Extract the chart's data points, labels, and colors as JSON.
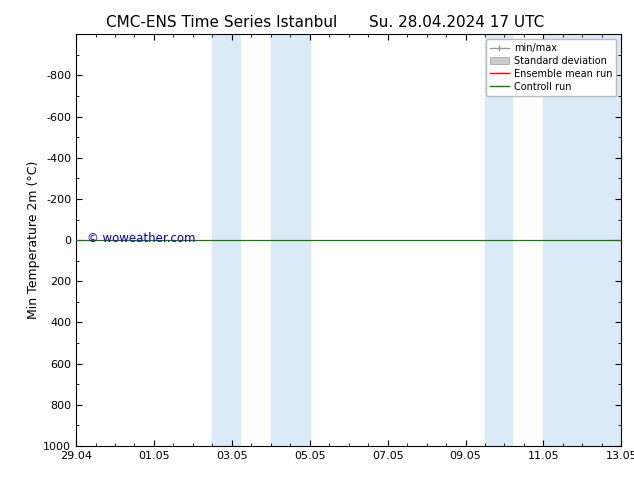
{
  "title_left": "CMC-ENS Time Series Istanbul",
  "title_right": "Su. 28.04.2024 17 UTC",
  "ylabel": "Min Temperature 2m (°C)",
  "ylim": [
    -1000,
    1000
  ],
  "yticks": [
    -800,
    -600,
    -400,
    -200,
    0,
    200,
    400,
    600,
    800,
    1000
  ],
  "xtick_labels": [
    "29.04",
    "01.05",
    "03.05",
    "05.05",
    "07.05",
    "09.05",
    "11.05",
    "13.05"
  ],
  "xtick_positions": [
    0,
    2,
    4,
    6,
    8,
    10,
    12,
    14
  ],
  "shaded_regions": [
    [
      3.5,
      4.2
    ],
    [
      5.0,
      6.0
    ],
    [
      10.5,
      11.2
    ],
    [
      12.0,
      14.0
    ]
  ],
  "shaded_color": "#daeaf7",
  "control_run_color": "#008000",
  "ensemble_mean_color": "#ff0000",
  "watermark": "© woweather.com",
  "watermark_color": "#0000bb",
  "bg_color": "#ffffff",
  "legend_labels": [
    "min/max",
    "Standard deviation",
    "Ensemble mean run",
    "Controll run"
  ],
  "tick_fontsize": 8,
  "ylabel_fontsize": 9,
  "title_fontsize": 11
}
